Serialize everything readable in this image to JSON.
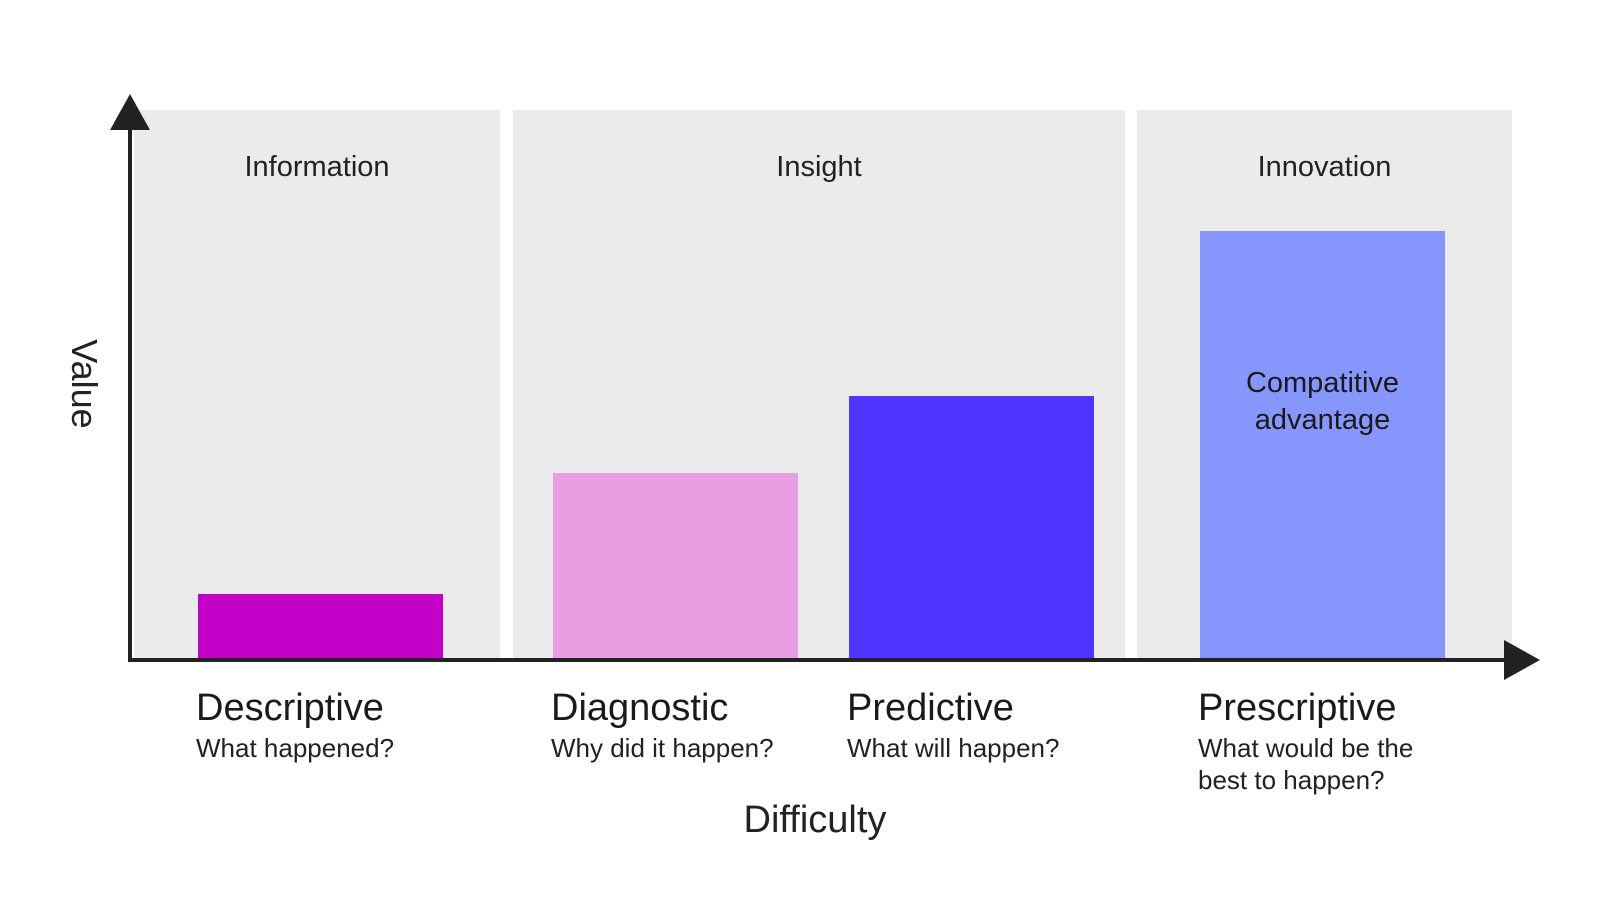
{
  "chart_data": {
    "type": "bar",
    "xlabel": "Difficulty",
    "ylabel": "Value",
    "bands": [
      {
        "label": "Information",
        "categories": [
          "Descriptive"
        ]
      },
      {
        "label": "Insight",
        "categories": [
          "Diagnostic",
          "Predictive"
        ]
      },
      {
        "label": "Innovation",
        "categories": [
          "Prescriptive"
        ]
      }
    ],
    "categories": [
      "Descriptive",
      "Diagnostic",
      "Predictive",
      "Prescriptive"
    ],
    "subtitles": [
      [
        "What happened?"
      ],
      [
        "Why did it happen?"
      ],
      [
        "What will happen?"
      ],
      [
        "What would be the",
        "best to happen?"
      ]
    ],
    "values": [
      12,
      34,
      48,
      78
    ],
    "ylim": [
      0,
      100
    ],
    "bar_annotations": [
      "",
      "",
      "",
      "Compatitive\nadvantage"
    ],
    "colors": [
      "#c400c8",
      "#e79ee3",
      "#4f35ff",
      "#8796fc"
    ],
    "band_color": "#ebebeb",
    "axis_color": "#222222",
    "grid": false
  }
}
